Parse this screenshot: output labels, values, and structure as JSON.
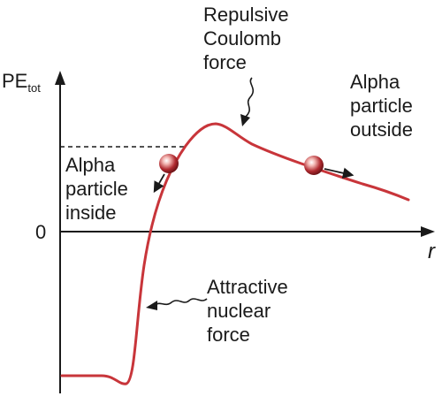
{
  "axes": {
    "y_label_main": "PE",
    "y_label_sub": "tot",
    "x_label": "r",
    "zero_label": "0"
  },
  "labels": {
    "repulsive": [
      "Repulsive",
      "Coulomb",
      "force"
    ],
    "outside": [
      "Alpha",
      "particle",
      "outside"
    ],
    "inside": [
      "Alpha",
      "particle",
      "inside"
    ],
    "attractive": [
      "Attractive",
      "nuclear",
      "force"
    ]
  },
  "colors": {
    "curve": "#c8353a",
    "particle": "#b02a30",
    "axis": "#1a1a1a",
    "text": "#1a1a1a"
  }
}
